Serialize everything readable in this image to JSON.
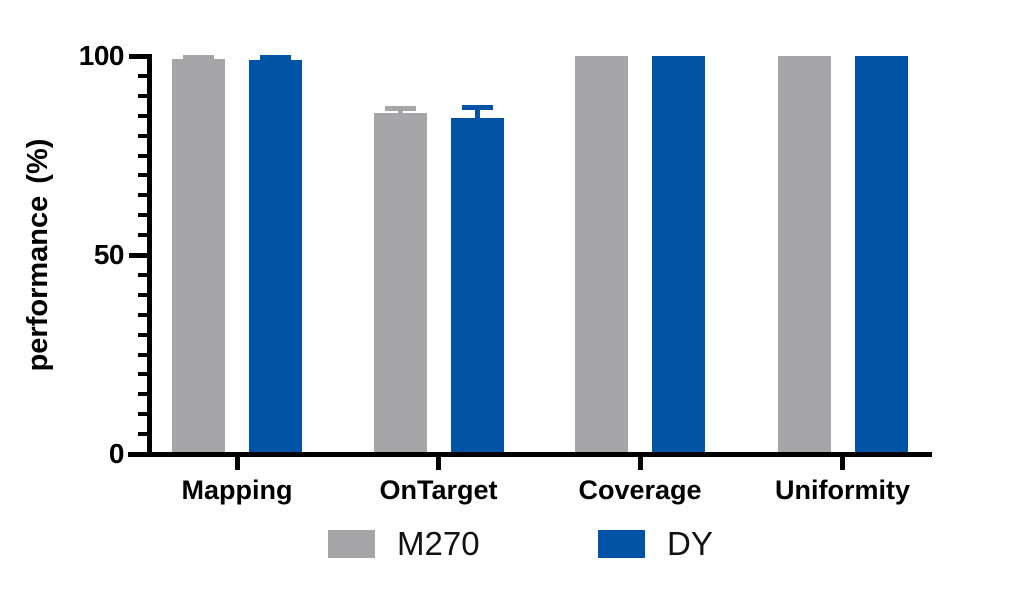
{
  "chart_data": {
    "type": "bar",
    "categories": [
      "Mapping",
      "OnTarget",
      "Coverage",
      "Uniformity"
    ],
    "series": [
      {
        "name": "M270",
        "color": "#A6A6A9",
        "values": [
          99.2,
          85.7,
          100,
          100
        ],
        "errors": [
          0.4,
          1.2,
          0,
          0
        ]
      },
      {
        "name": "DY",
        "color": "#0153A5",
        "values": [
          99.0,
          84.5,
          100,
          100
        ],
        "errors": [
          0.6,
          2.5,
          0,
          0
        ]
      }
    ],
    "ylabel": "performance (%)",
    "ylim": [
      0,
      100
    ],
    "yticks": [
      0,
      50,
      100
    ],
    "y_minor_tick_step": 5,
    "grid": false,
    "axis_color": "#000000",
    "error_bar_style": "upward caps colored per series",
    "legend_position": "bottom"
  }
}
